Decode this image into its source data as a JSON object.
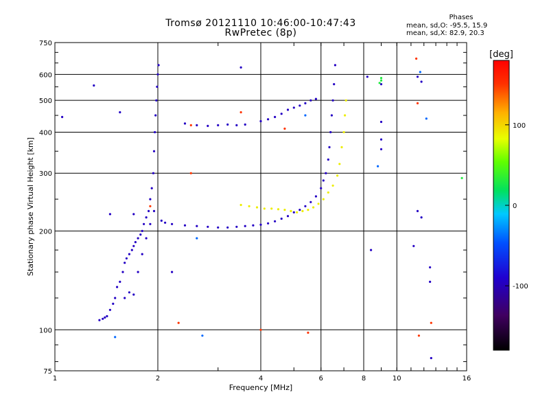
{
  "title": {
    "line1": "Tromsø 20121110 10:46:00-10:47:43",
    "line2": "RwPretec (8p)"
  },
  "stats": {
    "heading": "Phases",
    "line_o": "mean, sd,O: -95.5, 15.9",
    "line_x": "mean, sd,X:  82.9, 20.3"
  },
  "colorbar": {
    "unit": "[deg]",
    "ticks": [
      "100",
      "0",
      "-100"
    ],
    "tick_values": [
      100,
      0,
      -100
    ],
    "min": -180,
    "max": 180
  },
  "chart_data": {
    "type": "scatter",
    "title": "Tromsø 20121110 10:46:00-10:47:43",
    "subtitle": "RwPretec (8p)",
    "xlabel": "Frequency [MHz]",
    "ylabel": "Stationary phase Virtual Height [km]",
    "x_scale": "log",
    "y_scale": "log",
    "xlim": [
      1,
      16
    ],
    "ylim": [
      75,
      750
    ],
    "x_ticks": [
      1,
      2,
      4,
      6,
      8,
      10,
      16
    ],
    "x_tick_labels": [
      "1",
      "2",
      "4",
      "6",
      "8",
      "10",
      "16"
    ],
    "y_ticks": [
      75,
      100,
      200,
      300,
      400,
      500,
      600,
      750
    ],
    "y_tick_labels": [
      "75",
      "100",
      "200",
      "300",
      "400",
      "500",
      "600",
      "750"
    ],
    "grid": true,
    "color_by": "phase [deg]",
    "series": [
      {
        "color_phase": -95,
        "points": [
          [
            1.35,
            107
          ],
          [
            1.38,
            108
          ],
          [
            1.4,
            109
          ],
          [
            1.42,
            110
          ],
          [
            1.45,
            115
          ],
          [
            1.48,
            120
          ],
          [
            1.5,
            125
          ],
          [
            1.52,
            135
          ],
          [
            1.55,
            140
          ],
          [
            1.58,
            150
          ],
          [
            1.6,
            160
          ],
          [
            1.62,
            165
          ],
          [
            1.65,
            170
          ],
          [
            1.68,
            175
          ],
          [
            1.7,
            180
          ],
          [
            1.72,
            185
          ],
          [
            1.75,
            190
          ],
          [
            1.78,
            195
          ],
          [
            1.8,
            200
          ],
          [
            1.82,
            210
          ],
          [
            1.85,
            220
          ],
          [
            1.88,
            230
          ],
          [
            1.9,
            250
          ],
          [
            1.92,
            270
          ],
          [
            1.94,
            300
          ],
          [
            1.95,
            350
          ],
          [
            1.96,
            400
          ],
          [
            1.97,
            450
          ],
          [
            1.98,
            500
          ],
          [
            1.99,
            550
          ],
          [
            2.0,
            600
          ],
          [
            2.01,
            640
          ],
          [
            1.6,
            125
          ],
          [
            1.65,
            130
          ],
          [
            1.7,
            128
          ],
          [
            1.75,
            150
          ],
          [
            1.8,
            170
          ],
          [
            1.85,
            190
          ],
          [
            1.9,
            210
          ],
          [
            1.95,
            230
          ],
          [
            2.05,
            215
          ],
          [
            2.1,
            212
          ],
          [
            2.2,
            210
          ],
          [
            2.4,
            208
          ],
          [
            2.6,
            207
          ],
          [
            2.8,
            206
          ],
          [
            3.0,
            205
          ],
          [
            3.2,
            205
          ],
          [
            3.4,
            206
          ],
          [
            3.6,
            207
          ],
          [
            3.8,
            208
          ],
          [
            4.0,
            209
          ],
          [
            4.2,
            211
          ],
          [
            4.4,
            214
          ],
          [
            4.6,
            218
          ],
          [
            4.8,
            222
          ],
          [
            5.0,
            228
          ],
          [
            5.2,
            232
          ],
          [
            5.4,
            238
          ],
          [
            5.6,
            245
          ],
          [
            5.8,
            255
          ],
          [
            6.0,
            270
          ],
          [
            6.1,
            285
          ],
          [
            6.2,
            300
          ],
          [
            6.3,
            330
          ],
          [
            6.35,
            360
          ],
          [
            6.4,
            400
          ],
          [
            6.45,
            450
          ],
          [
            6.5,
            500
          ],
          [
            6.55,
            560
          ],
          [
            6.6,
            640
          ],
          [
            2.4,
            425
          ],
          [
            2.6,
            420
          ],
          [
            2.8,
            418
          ],
          [
            3.0,
            420
          ],
          [
            3.2,
            422
          ],
          [
            3.4,
            420
          ],
          [
            3.6,
            422
          ],
          [
            4.0,
            432
          ],
          [
            4.2,
            438
          ],
          [
            4.4,
            445
          ],
          [
            4.6,
            455
          ],
          [
            4.8,
            468
          ],
          [
            5.0,
            475
          ],
          [
            5.2,
            482
          ],
          [
            5.4,
            490
          ],
          [
            5.6,
            500
          ],
          [
            5.8,
            505
          ],
          [
            3.5,
            630
          ],
          [
            1.3,
            555
          ],
          [
            1.05,
            445
          ],
          [
            1.45,
            225
          ],
          [
            1.7,
            225
          ],
          [
            2.2,
            150
          ],
          [
            1.55,
            460
          ],
          [
            8.2,
            590
          ],
          [
            9.0,
            560
          ],
          [
            9.0,
            430
          ],
          [
            9.0,
            380
          ],
          [
            9.0,
            355
          ],
          [
            11.5,
            590
          ],
          [
            11.5,
            230
          ],
          [
            11.8,
            220
          ],
          [
            11.2,
            180
          ],
          [
            12.5,
            155
          ],
          [
            12.5,
            140
          ],
          [
            12.6,
            82
          ],
          [
            11.8,
            570
          ],
          [
            8.4,
            175
          ]
        ]
      },
      {
        "color_phase": 90,
        "points": [
          [
            3.5,
            240
          ],
          [
            3.7,
            238
          ],
          [
            3.9,
            236
          ],
          [
            4.1,
            234
          ],
          [
            4.3,
            234
          ],
          [
            4.5,
            233
          ],
          [
            4.7,
            232
          ],
          [
            4.9,
            230
          ],
          [
            5.1,
            228
          ],
          [
            5.3,
            230
          ],
          [
            5.5,
            232
          ],
          [
            5.7,
            236
          ],
          [
            5.9,
            242
          ],
          [
            6.1,
            250
          ],
          [
            6.3,
            262
          ],
          [
            6.5,
            275
          ],
          [
            6.7,
            295
          ],
          [
            6.8,
            320
          ],
          [
            6.9,
            360
          ],
          [
            7.0,
            400
          ],
          [
            7.05,
            450
          ],
          [
            7.1,
            500
          ]
        ]
      },
      {
        "color_phase": 150,
        "points": [
          [
            2.3,
            105
          ],
          [
            2.5,
            420
          ],
          [
            4.0,
            100
          ],
          [
            5.5,
            98
          ],
          [
            1.9,
            238
          ],
          [
            11.4,
            670
          ],
          [
            11.5,
            490
          ],
          [
            12.6,
            105
          ],
          [
            11.6,
            96
          ],
          [
            2.5,
            300
          ],
          [
            3.5,
            460
          ],
          [
            4.7,
            410
          ]
        ]
      },
      {
        "color_phase": 30,
        "points": [
          [
            9.0,
            585
          ],
          [
            9.0,
            575
          ],
          [
            8.9,
            565
          ],
          [
            15.5,
            290
          ]
        ]
      },
      {
        "color_phase": -40,
        "points": [
          [
            2.6,
            190
          ],
          [
            2.7,
            96
          ],
          [
            5.4,
            450
          ],
          [
            8.8,
            315
          ],
          [
            1.5,
            95
          ],
          [
            11.7,
            610
          ],
          [
            12.2,
            440
          ]
        ]
      }
    ]
  }
}
